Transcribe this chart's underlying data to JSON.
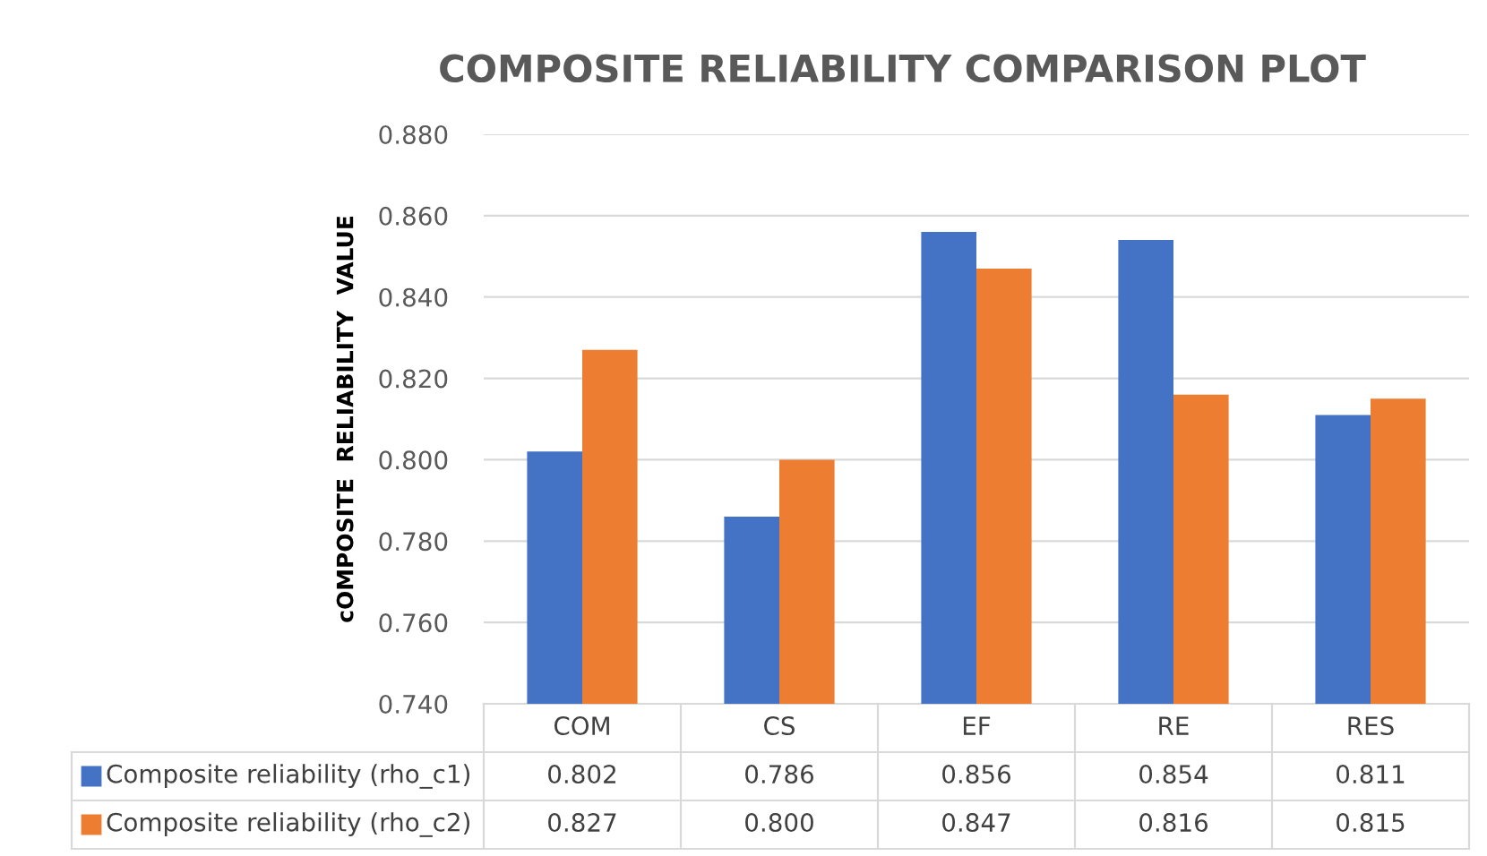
{
  "chart_data": {
    "type": "bar",
    "title": "COMPOSITE RELIABILITY COMPARISON PLOT",
    "ylabel": "cOMPOSITE  RELIABILITY  VALUE",
    "categories": [
      "COM",
      "CS",
      "EF",
      "RE",
      "RES"
    ],
    "series": [
      {
        "name": "Composite reliability (rho_c1)",
        "color": "#4472c4",
        "values": [
          0.802,
          0.786,
          0.856,
          0.854,
          0.811
        ],
        "value_labels": [
          "0.802",
          "0.786",
          "0.856",
          "0.854",
          "0.811"
        ]
      },
      {
        "name": "Composite reliability (rho_c2)",
        "color": "#ed7d31",
        "values": [
          0.827,
          0.8,
          0.847,
          0.816,
          0.815
        ],
        "value_labels": [
          "0.827",
          "0.800",
          "0.847",
          "0.816",
          "0.815"
        ]
      }
    ],
    "ylim": [
      0.74,
      0.88
    ],
    "yticks": [
      {
        "value": 0.74,
        "label": "0.740"
      },
      {
        "value": 0.76,
        "label": "0.760"
      },
      {
        "value": 0.78,
        "label": "0.780"
      },
      {
        "value": 0.8,
        "label": "0.800"
      },
      {
        "value": 0.82,
        "label": "0.820"
      },
      {
        "value": 0.84,
        "label": "0.840"
      },
      {
        "value": 0.86,
        "label": "0.860"
      },
      {
        "value": 0.88,
        "label": "0.880"
      }
    ],
    "grid": "y",
    "legend": "bottom"
  }
}
